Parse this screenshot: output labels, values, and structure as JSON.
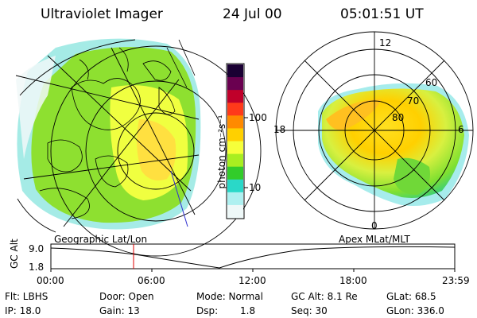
{
  "header": {
    "title": "Ultraviolet Imager",
    "date": "24 Jul 00",
    "time": "05:01:51 UT"
  },
  "colorbar": {
    "unit_label": "photon cm⁻²s⁻¹",
    "tick_100": "100",
    "tick_10": "10",
    "colors": [
      "#1a0033",
      "#6a0050",
      "#c0002a",
      "#ff3a1a",
      "#ff8a00",
      "#ffd000",
      "#f6ff3a",
      "#a8ee20",
      "#32cc2a",
      "#2ad8c8",
      "#aef0f0",
      "#eef8f8"
    ]
  },
  "polar": {
    "mlt_12": "12",
    "mlt_18": "18",
    "mlt_6": "6",
    "mlt_0": "0",
    "lat_60": "60",
    "lat_70": "70",
    "lat_80": "80"
  },
  "panel_labels": {
    "left": "Geographic Lat/Lon",
    "right": "Apex MLat/MLT"
  },
  "timeline": {
    "axis_title": "GC Alt",
    "y_top": "9.0",
    "y_bottom": "1.8",
    "ticks": [
      "00:00",
      "06:00",
      "12:00",
      "18:00",
      "23:59"
    ],
    "marker_time": "05:01:51"
  },
  "status": {
    "flt": "Flt: LBHS",
    "ip": "IP: 18.0",
    "door": "Door: Open",
    "gain": "Gain: 13",
    "mode": "Mode: Normal",
    "dsp_label": "Dsp:",
    "dsp_value": "1.8",
    "gc_alt": "GC Alt: 8.1 Re",
    "seq": "Seq: 30",
    "glat": "GLat: 68.5",
    "glon": "GLon: 336.0"
  }
}
